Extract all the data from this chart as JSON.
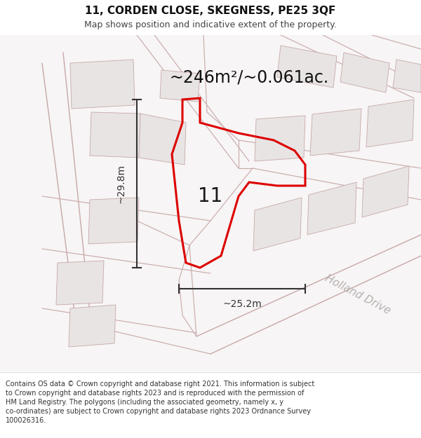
{
  "title_line1": "11, CORDEN CLOSE, SKEGNESS, PE25 3QF",
  "title_line2": "Map shows position and indicative extent of the property.",
  "area_text": "~246m²/~0.061ac.",
  "dim_vertical": "~29.8m",
  "dim_horizontal": "~25.2m",
  "plot_number": "11",
  "road_label": "Holland Drive",
  "footer_lines": [
    "Contains OS data © Crown copyright and database right 2021. This information is subject",
    "to Crown copyright and database rights 2023 and is reproduced with the permission of",
    "HM Land Registry. The polygons (including the associated geometry, namely x, y",
    "co-ordinates) are subject to Crown copyright and database rights 2023 Ordnance Survey",
    "100026316."
  ],
  "map_bg": "#f7f5f5",
  "plot_fill": "none",
  "plot_edge": "#dd0000",
  "parcel_fill": "#e8e4e4",
  "parcel_edge": "#c8a8a8",
  "dim_color": "#333333",
  "road_label_color": "#b8b0b0",
  "title_fontsize": 11,
  "subtitle_fontsize": 9,
  "area_fontsize": 17,
  "dim_fontsize": 10,
  "number_fontsize": 20,
  "footer_fontsize": 7,
  "road_fontsize": 11
}
